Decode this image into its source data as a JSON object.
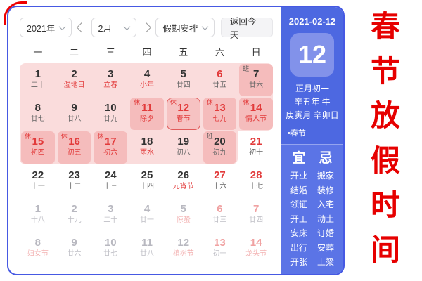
{
  "frame": {
    "accent_red": "#e60000",
    "card_border": "#4659e3",
    "holiday_pink": "#fadcdc",
    "cell_pink": "#f5bcbc",
    "sidebar_blue": "#4d68e1"
  },
  "toolbar": {
    "year": "2021年",
    "month": "2月",
    "holiday_plan": "假期安排",
    "back_to_today": "返回今天"
  },
  "weekdays": [
    "一",
    "二",
    "三",
    "四",
    "五",
    "六",
    "日"
  ],
  "calendar": {
    "days": [
      {
        "n": "1",
        "l": "二十",
        "nc": "d",
        "lc": "g",
        "b": "",
        "bt": "",
        "hl": false,
        "sel": false
      },
      {
        "n": "2",
        "l": "湿地日",
        "nc": "d",
        "lc": "r",
        "b": "",
        "bt": "",
        "hl": false,
        "sel": false
      },
      {
        "n": "3",
        "l": "立春",
        "nc": "d",
        "lc": "r",
        "b": "",
        "bt": "",
        "hl": false,
        "sel": false
      },
      {
        "n": "4",
        "l": "小年",
        "nc": "d",
        "lc": "r",
        "b": "",
        "bt": "",
        "hl": false,
        "sel": false
      },
      {
        "n": "5",
        "l": "廿四",
        "nc": "d",
        "lc": "g",
        "b": "",
        "bt": "",
        "hl": false,
        "sel": false
      },
      {
        "n": "6",
        "l": "廿五",
        "nc": "r",
        "lc": "g",
        "b": "",
        "bt": "",
        "hl": false,
        "sel": false
      },
      {
        "n": "7",
        "l": "廿六",
        "nc": "d",
        "lc": "g",
        "b": "班",
        "bt": "work",
        "hl": true,
        "sel": false
      },
      {
        "n": "8",
        "l": "廿七",
        "nc": "d",
        "lc": "g",
        "b": "",
        "bt": "",
        "hl": false,
        "sel": false
      },
      {
        "n": "9",
        "l": "廿八",
        "nc": "d",
        "lc": "g",
        "b": "",
        "bt": "",
        "hl": false,
        "sel": false
      },
      {
        "n": "10",
        "l": "廿九",
        "nc": "d",
        "lc": "g",
        "b": "",
        "bt": "",
        "hl": false,
        "sel": false
      },
      {
        "n": "11",
        "l": "除夕",
        "nc": "r",
        "lc": "r",
        "b": "休",
        "bt": "rest",
        "hl": true,
        "sel": false
      },
      {
        "n": "12",
        "l": "春节",
        "nc": "r",
        "lc": "r",
        "b": "休",
        "bt": "rest",
        "hl": true,
        "sel": true
      },
      {
        "n": "13",
        "l": "七九",
        "nc": "r",
        "lc": "r",
        "b": "休",
        "bt": "rest",
        "hl": true,
        "sel": false
      },
      {
        "n": "14",
        "l": "情人节",
        "nc": "r",
        "lc": "r",
        "b": "休",
        "bt": "rest",
        "hl": true,
        "sel": false
      },
      {
        "n": "15",
        "l": "初四",
        "nc": "r",
        "lc": "r",
        "b": "休",
        "bt": "rest",
        "hl": true,
        "sel": false
      },
      {
        "n": "16",
        "l": "初五",
        "nc": "r",
        "lc": "r",
        "b": "休",
        "bt": "rest",
        "hl": true,
        "sel": false
      },
      {
        "n": "17",
        "l": "初六",
        "nc": "r",
        "lc": "r",
        "b": "休",
        "bt": "rest",
        "hl": true,
        "sel": false
      },
      {
        "n": "18",
        "l": "雨水",
        "nc": "d",
        "lc": "r",
        "b": "",
        "bt": "",
        "hl": false,
        "sel": false
      },
      {
        "n": "19",
        "l": "初八",
        "nc": "d",
        "lc": "g",
        "b": "",
        "bt": "",
        "hl": false,
        "sel": false
      },
      {
        "n": "20",
        "l": "初九",
        "nc": "d",
        "lc": "g",
        "b": "班",
        "bt": "work",
        "hl": true,
        "sel": false
      },
      {
        "n": "21",
        "l": "初十",
        "nc": "r",
        "lc": "g",
        "b": "",
        "bt": "",
        "hl": false,
        "sel": false
      },
      {
        "n": "22",
        "l": "十一",
        "nc": "d",
        "lc": "g",
        "b": "",
        "bt": "",
        "hl": false,
        "sel": false
      },
      {
        "n": "23",
        "l": "十二",
        "nc": "d",
        "lc": "g",
        "b": "",
        "bt": "",
        "hl": false,
        "sel": false
      },
      {
        "n": "24",
        "l": "十三",
        "nc": "d",
        "lc": "g",
        "b": "",
        "bt": "",
        "hl": false,
        "sel": false
      },
      {
        "n": "25",
        "l": "十四",
        "nc": "d",
        "lc": "g",
        "b": "",
        "bt": "",
        "hl": false,
        "sel": false
      },
      {
        "n": "26",
        "l": "元宵节",
        "nc": "d",
        "lc": "r",
        "b": "",
        "bt": "",
        "hl": false,
        "sel": false
      },
      {
        "n": "27",
        "l": "十六",
        "nc": "r",
        "lc": "g",
        "b": "",
        "bt": "",
        "hl": false,
        "sel": false
      },
      {
        "n": "28",
        "l": "十七",
        "nc": "r",
        "lc": "g",
        "b": "",
        "bt": "",
        "hl": false,
        "sel": false
      },
      {
        "n": "1",
        "l": "十八",
        "nc": "lg",
        "lc": "lg",
        "b": "",
        "bt": "",
        "hl": false,
        "sel": false
      },
      {
        "n": "2",
        "l": "十九",
        "nc": "lg",
        "lc": "lg",
        "b": "",
        "bt": "",
        "hl": false,
        "sel": false
      },
      {
        "n": "3",
        "l": "二十",
        "nc": "lg",
        "lc": "lg",
        "b": "",
        "bt": "",
        "hl": false,
        "sel": false
      },
      {
        "n": "4",
        "l": "廿一",
        "nc": "lg",
        "lc": "lg",
        "b": "",
        "bt": "",
        "hl": false,
        "sel": false
      },
      {
        "n": "5",
        "l": "惊蛰",
        "nc": "lg",
        "lc": "lr",
        "b": "",
        "bt": "",
        "hl": false,
        "sel": false
      },
      {
        "n": "6",
        "l": "廿三",
        "nc": "lr",
        "lc": "lg",
        "b": "",
        "bt": "",
        "hl": false,
        "sel": false
      },
      {
        "n": "7",
        "l": "廿四",
        "nc": "lr",
        "lc": "lg",
        "b": "",
        "bt": "",
        "hl": false,
        "sel": false
      },
      {
        "n": "8",
        "l": "妇女节",
        "nc": "lg",
        "lc": "lr",
        "b": "",
        "bt": "",
        "hl": false,
        "sel": false
      },
      {
        "n": "9",
        "l": "廿六",
        "nc": "lg",
        "lc": "lg",
        "b": "",
        "bt": "",
        "hl": false,
        "sel": false
      },
      {
        "n": "10",
        "l": "廿七",
        "nc": "lg",
        "lc": "lg",
        "b": "",
        "bt": "",
        "hl": false,
        "sel": false
      },
      {
        "n": "11",
        "l": "廿八",
        "nc": "lg",
        "lc": "lg",
        "b": "",
        "bt": "",
        "hl": false,
        "sel": false
      },
      {
        "n": "12",
        "l": "植树节",
        "nc": "lg",
        "lc": "lr",
        "b": "",
        "bt": "",
        "hl": false,
        "sel": false
      },
      {
        "n": "13",
        "l": "初一",
        "nc": "lr",
        "lc": "lg",
        "b": "",
        "bt": "",
        "hl": false,
        "sel": false
      },
      {
        "n": "14",
        "l": "龙头节",
        "nc": "lr",
        "lc": "lr",
        "b": "",
        "bt": "",
        "hl": false,
        "sel": false
      }
    ]
  },
  "sidebar": {
    "date": "2021-02-12",
    "day_number": "12",
    "lunar_date": "正月初一",
    "year_line": "辛丑年 牛",
    "day_line": "庚寅月 辛卯日",
    "festival": "•春节",
    "yi_label": "宜",
    "ji_label": "忌",
    "yi": [
      "开业",
      "结婚",
      "领证",
      "开工",
      "安床",
      "出行",
      "开张"
    ],
    "ji": [
      "搬家",
      "装修",
      "入宅",
      "动土",
      "订婚",
      "安葬",
      "上梁"
    ]
  },
  "vertical_title": {
    "text": "春节放假时间",
    "chars": [
      "春",
      "节",
      "放",
      "假",
      "时",
      "间"
    ]
  }
}
